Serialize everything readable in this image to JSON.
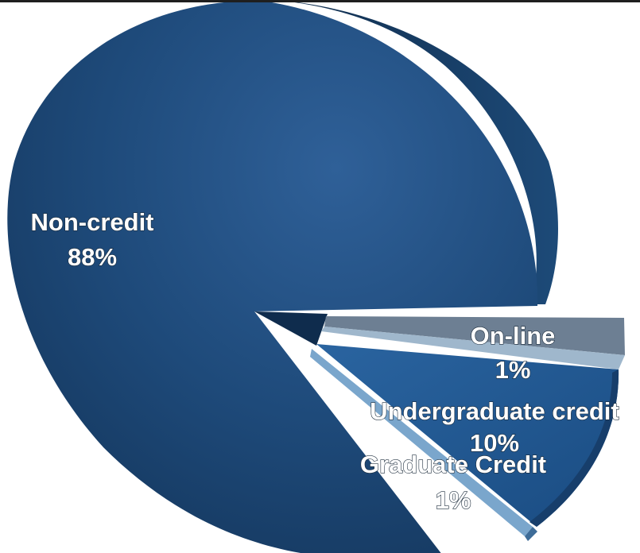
{
  "chart_data": {
    "type": "pie",
    "title": "",
    "slices": [
      {
        "label": "Non-credit",
        "value_label": "88%",
        "value": 88,
        "color": "#1d4674"
      },
      {
        "label": "On-line",
        "value_label": "1%",
        "value": 1,
        "color": "#6f8194"
      },
      {
        "label": "Undergraduate credit",
        "value_label": "10%",
        "value": 10,
        "color": "#1f5a92"
      },
      {
        "label": "Graduate Credit",
        "value_label": "1%",
        "value": 1,
        "color": "#7aa6cc"
      }
    ],
    "legend": "none",
    "style": "3d-exploded"
  }
}
